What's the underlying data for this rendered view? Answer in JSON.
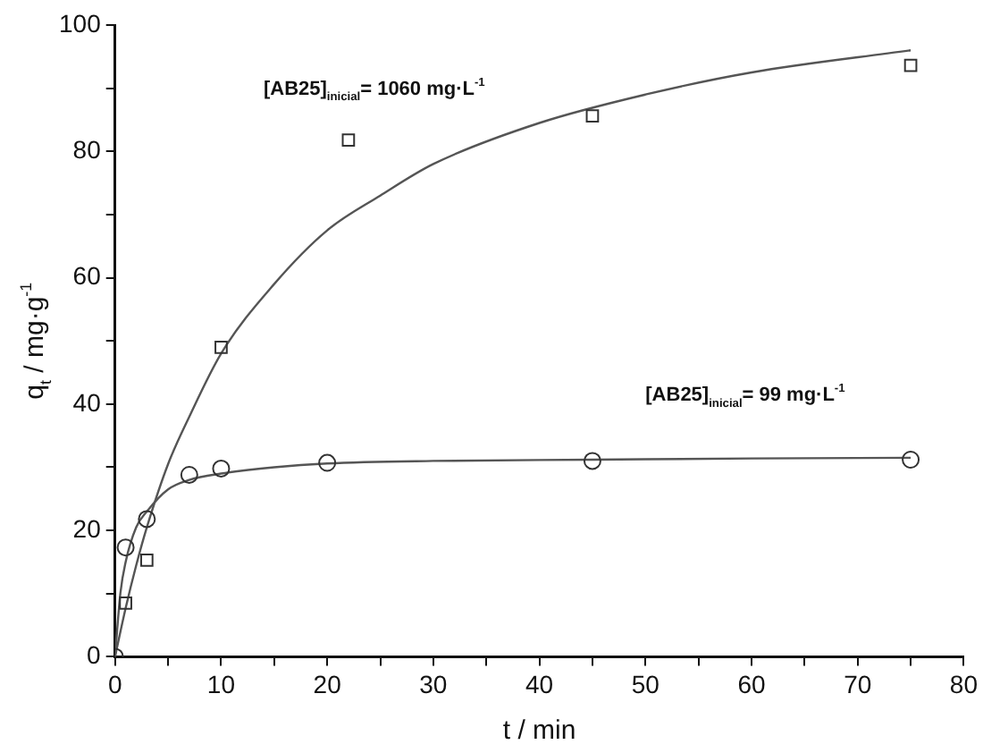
{
  "chart_data": {
    "type": "scatter",
    "xlabel": "t / min",
    "ylabel": "q$_{t}$ / mg·g$^{-1}$",
    "xlim": [
      0,
      80
    ],
    "xticks": [
      0,
      {
        "value": 5,
        "label": null
      },
      10,
      {
        "value": 15,
        "label": null
      },
      20,
      {
        "value": 25,
        "label": null
      },
      30,
      {
        "value": 35,
        "label": null
      },
      40,
      {
        "value": 45,
        "label": null
      },
      50,
      {
        "value": 55,
        "label": null
      },
      60,
      {
        "value": 65,
        "label": null
      },
      70,
      {
        "value": 75,
        "label": null
      },
      80
    ],
    "ylim": [
      0,
      100
    ],
    "yticks": [
      0,
      {
        "value": 10,
        "label": null
      },
      20,
      {
        "value": 30,
        "label": null
      },
      40,
      {
        "value": 50,
        "label": null
      },
      60,
      {
        "value": 70,
        "label": null
      },
      80,
      {
        "value": 90,
        "label": null
      },
      100
    ],
    "grid": false,
    "legend": false,
    "series": [
      {
        "type": "scatter",
        "marker": "square",
        "color": "#333333",
        "x": [
          1,
          3,
          10,
          22,
          45,
          75
        ],
        "values": [
          8.5,
          15.3,
          49,
          81.8,
          85.6,
          93.6
        ]
      },
      {
        "type": "scatter",
        "marker": "circle",
        "color": "#333333",
        "x": [
          0,
          1,
          3,
          7,
          10,
          20,
          45,
          75
        ],
        "values": [
          0,
          17.3,
          21.8,
          28.8,
          29.8,
          30.7,
          31,
          31.2
        ]
      },
      {
        "type": "line",
        "marker": "none",
        "color": "#555555",
        "x": [
          0,
          1,
          2,
          3,
          5,
          7,
          10,
          15,
          20,
          25,
          30,
          40,
          50,
          60,
          75
        ],
        "values": [
          0,
          7.7,
          14.5,
          20.5,
          30.5,
          38,
          48,
          59,
          67.5,
          73,
          78,
          84.5,
          89,
          92.5,
          96
        ]
      },
      {
        "type": "line",
        "marker": "none",
        "color": "#555555",
        "x": [
          0,
          0.5,
          1,
          2,
          3,
          5,
          7,
          10,
          15,
          20,
          30,
          45,
          60,
          75
        ],
        "values": [
          0,
          10,
          15,
          20.5,
          23,
          26.5,
          28,
          29,
          30,
          30.6,
          31,
          31.2,
          31.4,
          31.5
        ]
      }
    ],
    "annotations": [
      "[AB25]$_{inicial}$= 1060 mg·L$^{-1}$",
      "[AB25]$_{inicial}$= 99 mg·L$^{-1}$"
    ]
  }
}
